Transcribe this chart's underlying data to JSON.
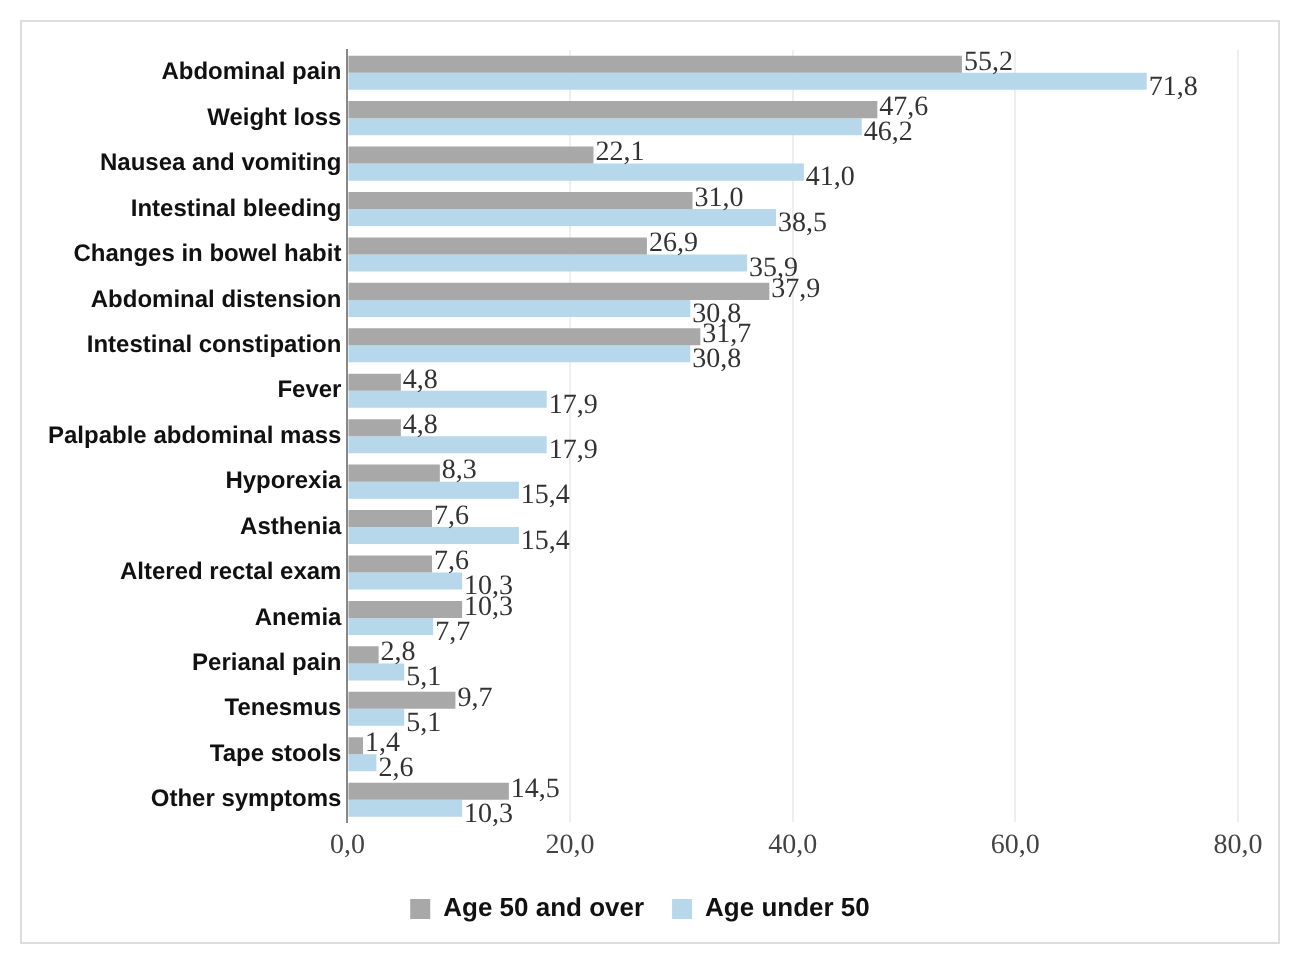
{
  "chart_data": {
    "type": "bar",
    "orientation": "horizontal",
    "categories": [
      "Abdominal pain",
      "Weight loss",
      "Nausea and vomiting",
      "Intestinal bleeding",
      "Changes in bowel habit",
      "Abdominal distension",
      "Intestinal constipation",
      "Fever",
      "Palpable abdominal mass",
      "Hyporexia",
      "Asthenia",
      "Altered rectal exam",
      "Anemia",
      "Perianal pain",
      "Tenesmus",
      "Tape stools",
      "Other symptoms"
    ],
    "series": [
      {
        "name": "Age 50 and over",
        "color": "#a8a8a8",
        "values": [
          55.2,
          47.6,
          22.1,
          31.0,
          26.9,
          37.9,
          31.7,
          4.8,
          4.8,
          8.3,
          7.6,
          7.6,
          10.3,
          2.8,
          9.7,
          1.4,
          14.5
        ],
        "value_labels": [
          "55,2",
          "47,6",
          "22,1",
          "31,0",
          "26,9",
          "37,9",
          "31,7",
          "4,8",
          "4,8",
          "8,3",
          "7,6",
          "7,6",
          "10,3",
          "2,8",
          "9,7",
          "1,4",
          "14,5"
        ]
      },
      {
        "name": "Age under 50",
        "color": "#b7d7ea",
        "values": [
          71.8,
          46.2,
          41.0,
          38.5,
          35.9,
          30.8,
          30.8,
          17.9,
          17.9,
          15.4,
          15.4,
          10.3,
          7.7,
          5.1,
          5.1,
          2.6,
          10.3
        ],
        "value_labels": [
          "71,8",
          "46,2",
          "41,0",
          "38,5",
          "35,9",
          "30,8",
          "30,8",
          "17,9",
          "17,9",
          "15,4",
          "15,4",
          "10,3",
          "7,7",
          "5,1",
          "5,1",
          "2,6",
          "10,3"
        ]
      }
    ],
    "xlim": [
      0,
      80
    ],
    "xticks": [
      {
        "value": 0,
        "label": "0,0"
      },
      {
        "value": 20,
        "label": "20,0"
      },
      {
        "value": 40,
        "label": "40,0"
      },
      {
        "value": 60,
        "label": "60,0"
      },
      {
        "value": 80,
        "label": "80,0"
      }
    ],
    "grid": "x",
    "legend": "bottom"
  }
}
